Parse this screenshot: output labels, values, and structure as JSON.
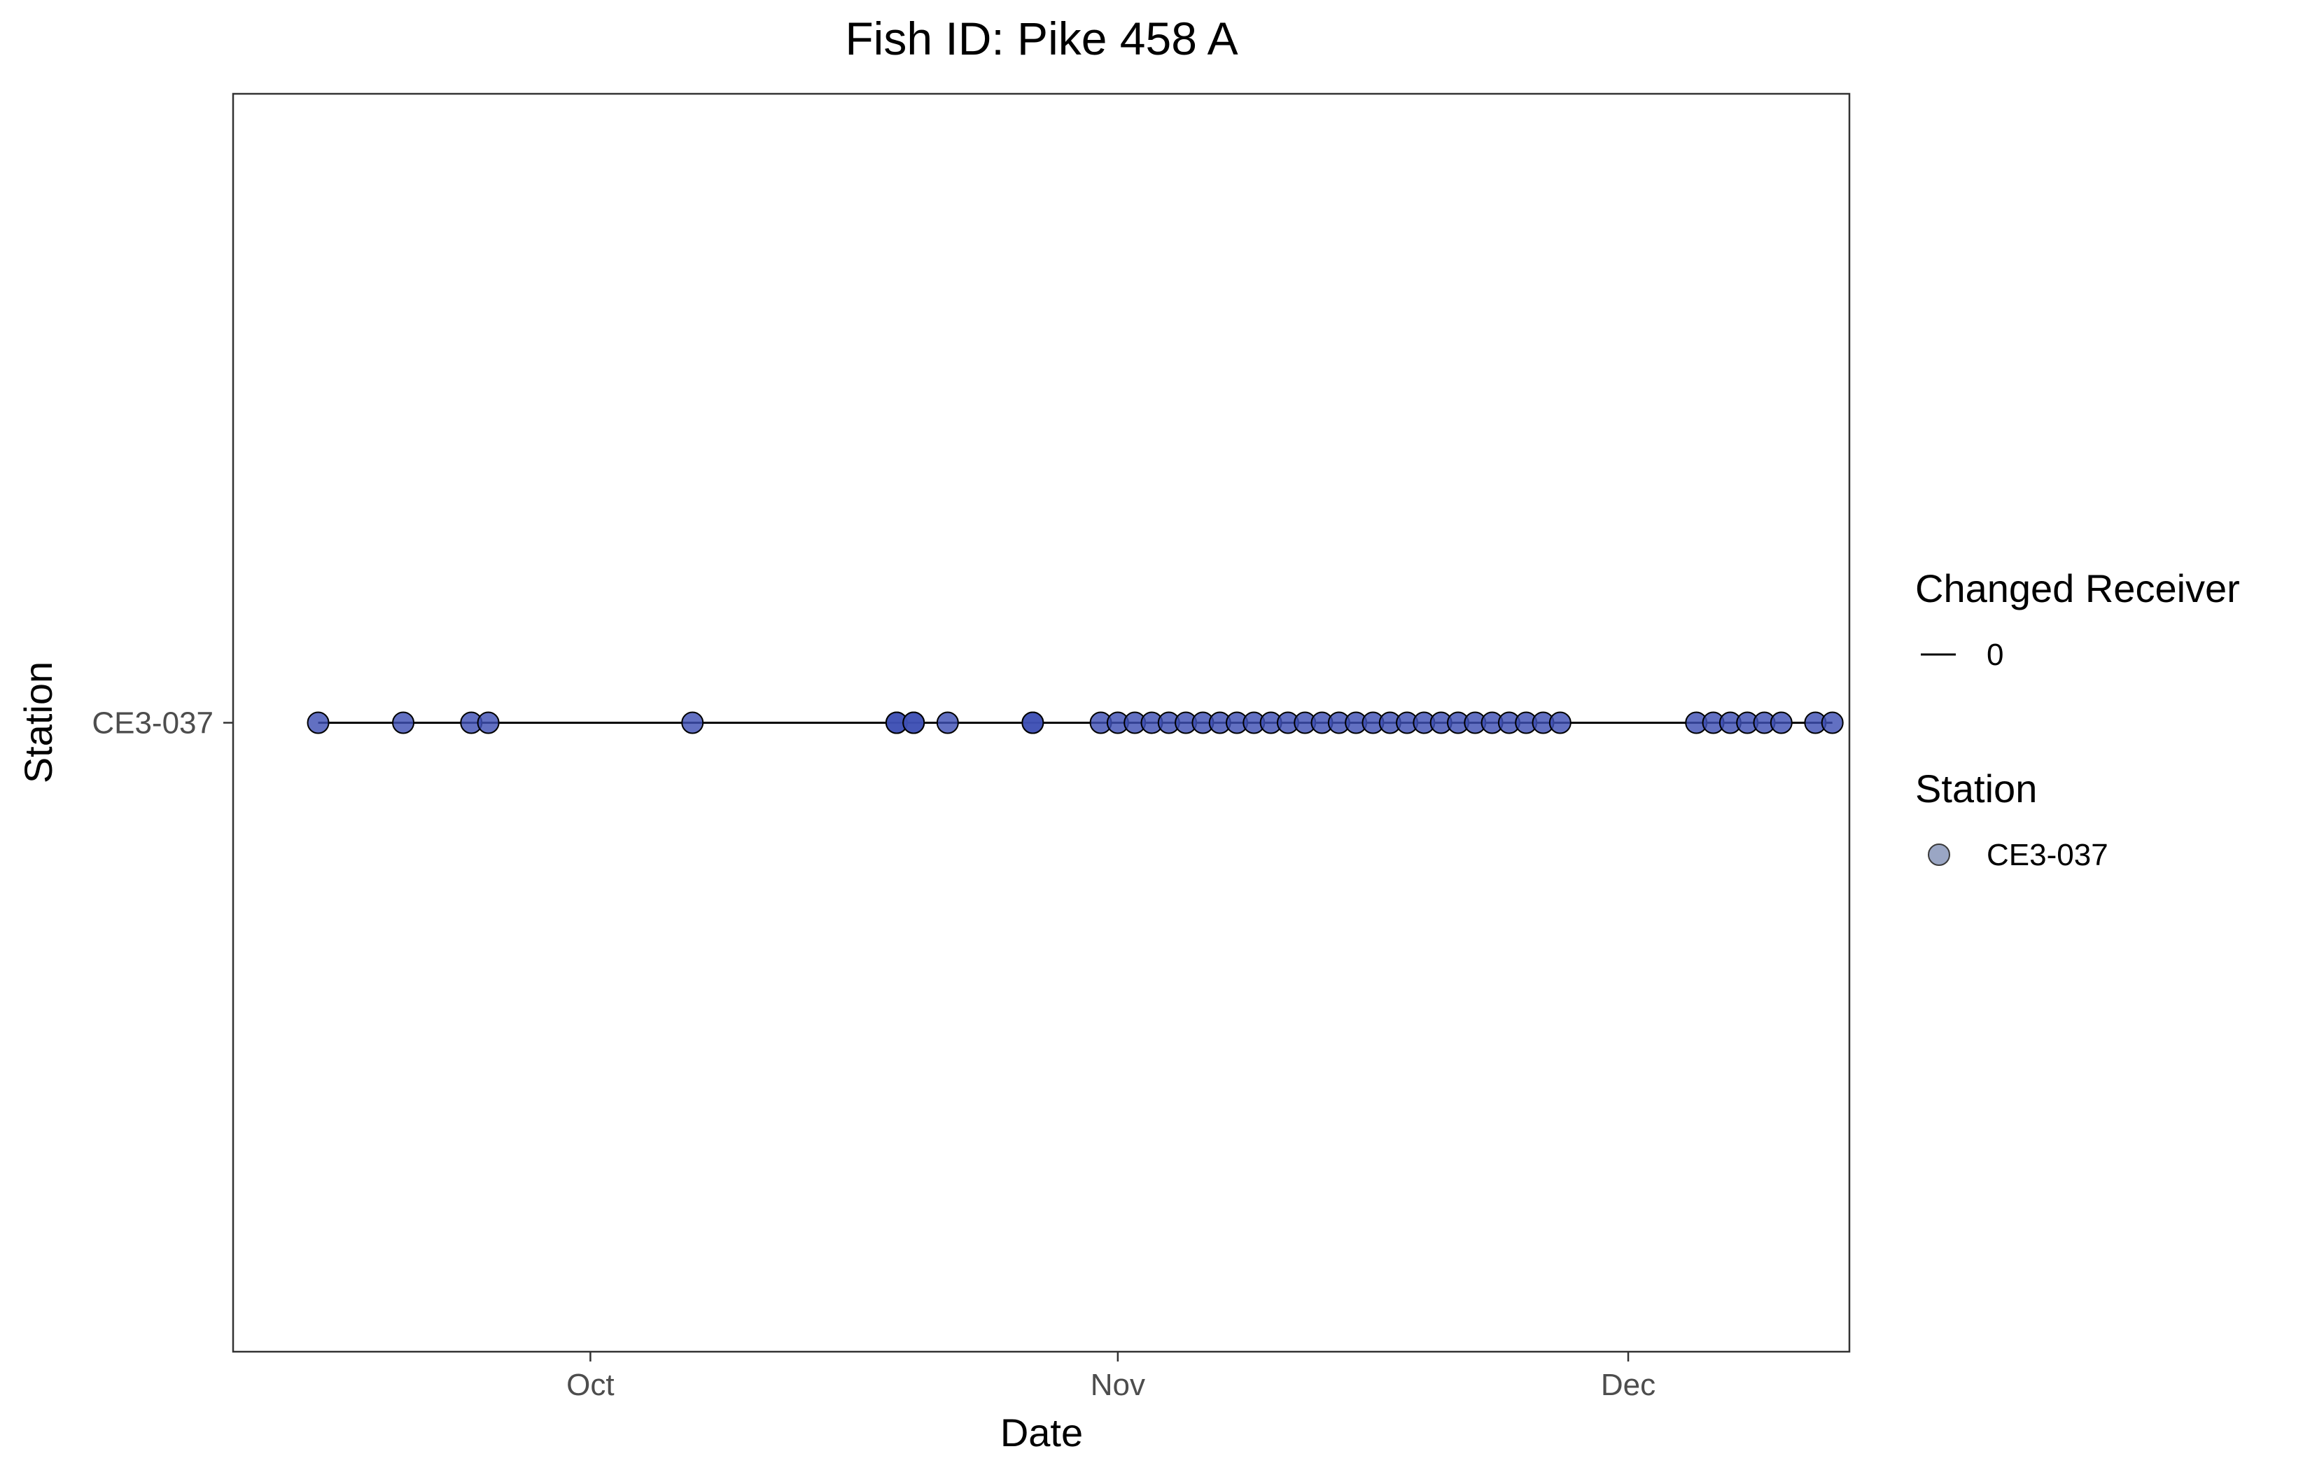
{
  "chart_data": {
    "type": "scatter",
    "title": "Fish ID: Pike 458 A",
    "xlabel": "Date",
    "ylabel": "Station",
    "x_ticks": [
      {
        "label": "Oct",
        "date": "2023-10-01"
      },
      {
        "label": "Nov",
        "date": "2023-11-01"
      },
      {
        "label": "Dec",
        "date": "2023-12-01"
      }
    ],
    "y_categories": [
      "CE3-037"
    ],
    "xlim": [
      "2023-09-10",
      "2023-12-14"
    ],
    "grid": false,
    "legend": {
      "position": "right",
      "groups": [
        {
          "title": "Changed Receiver",
          "key": "line",
          "entries": [
            "0"
          ]
        },
        {
          "title": "Station",
          "key": "point",
          "entries": [
            "CE3-037"
          ]
        }
      ]
    },
    "colors": {
      "point_fill": "#3f51b5",
      "point_outline": "#000000",
      "line": "#000000",
      "legend_point": "#9aa6c4"
    },
    "series": [
      {
        "station": "CE3-037",
        "changed_receiver": "0",
        "dates": [
          "2023-09-15",
          "2023-09-20",
          "2023-09-24",
          "2023-09-25",
          "2023-10-07",
          "2023-10-19",
          "2023-10-19",
          "2023-10-20",
          "2023-10-20",
          "2023-10-22",
          "2023-10-27",
          "2023-10-27",
          "2023-10-31",
          "2023-11-01",
          "2023-11-02",
          "2023-11-03",
          "2023-11-04",
          "2023-11-05",
          "2023-11-06",
          "2023-11-07",
          "2023-11-08",
          "2023-11-09",
          "2023-11-10",
          "2023-11-11",
          "2023-11-12",
          "2023-11-13",
          "2023-11-14",
          "2023-11-15",
          "2023-11-16",
          "2023-11-17",
          "2023-11-18",
          "2023-11-19",
          "2023-11-20",
          "2023-11-21",
          "2023-11-22",
          "2023-11-23",
          "2023-11-24",
          "2023-11-25",
          "2023-11-26",
          "2023-11-27",
          "2023-12-05",
          "2023-12-06",
          "2023-12-07",
          "2023-12-08",
          "2023-12-09",
          "2023-12-10",
          "2023-12-12",
          "2023-12-13"
        ]
      }
    ]
  }
}
